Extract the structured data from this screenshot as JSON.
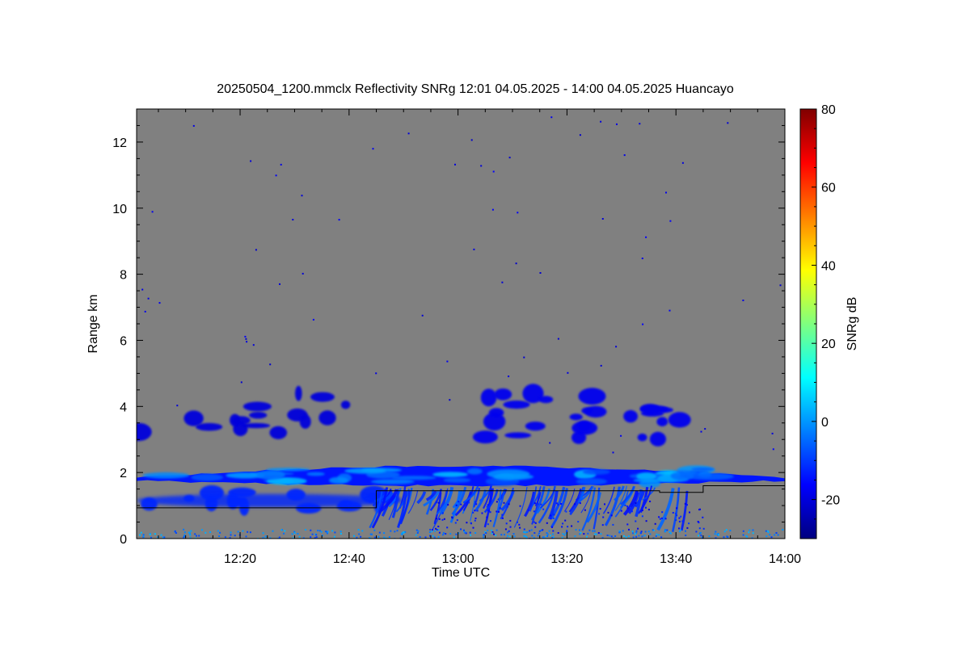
{
  "chart_data": {
    "type": "heatmap",
    "title": "20250504_1200.mmclx Reflectivity SNRg   12:01 04.05.2025 - 14:00 04.05.2025 Huancayo",
    "xlabel": "Time UTC",
    "ylabel": "Range km",
    "x_range": [
      "12:01",
      "14:00"
    ],
    "x_ticks": [
      {
        "value": "12:20",
        "label": "12:20"
      },
      {
        "value": "12:40",
        "label": "12:40"
      },
      {
        "value": "13:00",
        "label": "13:00"
      },
      {
        "value": "13:20",
        "label": "13:20"
      },
      {
        "value": "13:40",
        "label": "13:40"
      },
      {
        "value": "14:00",
        "label": "14:00"
      }
    ],
    "ylim": [
      0,
      13
    ],
    "y_ticks": [
      {
        "value": 0,
        "label": "0"
      },
      {
        "value": 2,
        "label": "2"
      },
      {
        "value": 4,
        "label": "4"
      },
      {
        "value": 6,
        "label": "6"
      },
      {
        "value": 8,
        "label": "8"
      },
      {
        "value": 10,
        "label": "10"
      },
      {
        "value": 12,
        "label": "12"
      }
    ],
    "colorbar": {
      "label": "SNRg dB",
      "range": [
        -30,
        80
      ],
      "ticks": [
        {
          "value": -20,
          "label": "-20"
        },
        {
          "value": 0,
          "label": "0"
        },
        {
          "value": 20,
          "label": "20"
        },
        {
          "value": 40,
          "label": "40"
        },
        {
          "value": 60,
          "label": "60"
        },
        {
          "value": 80,
          "label": "80"
        }
      ],
      "colormap": [
        "#00007f",
        "#0000ff",
        "#007fff",
        "#00ffff",
        "#7fff7f",
        "#ffff00",
        "#ff7f00",
        "#ff0000",
        "#7f0000"
      ]
    },
    "background_color": "#808080",
    "echo_layers": [
      {
        "name": "main-layer",
        "t_start": "12:01",
        "t_end": "14:00",
        "base_km": 1.6,
        "top_km": 2.2,
        "snr_db": -5
      },
      {
        "name": "mid-layer-left",
        "t_start": "12:01",
        "t_end": "12:50",
        "base_km": 0.9,
        "top_km": 1.4,
        "snr_db": -12
      },
      {
        "name": "fallstreaks",
        "t_start": "12:45",
        "t_end": "13:45",
        "base_km": 0.2,
        "top_km": 1.6,
        "snr_db": -15
      },
      {
        "name": "upper-cells",
        "t_start": "13:05",
        "t_end": "13:42",
        "base_km": 3.0,
        "top_km": 4.4,
        "snr_db": -18
      },
      {
        "name": "upper-patches-left",
        "t_start": "12:01",
        "t_end": "12:40",
        "base_km": 3.2,
        "top_km": 4.4,
        "snr_db": -20
      },
      {
        "name": "surface-clutter",
        "t_start": "12:01",
        "t_end": "14:00",
        "base_km": 0.0,
        "top_km": 0.3,
        "snr_db": -10
      }
    ],
    "cloud_base_line": [
      {
        "t": "12:01",
        "km": 0.93
      },
      {
        "t": "12:45",
        "km": 0.93
      },
      {
        "t": "12:45",
        "km": 1.45
      },
      {
        "t": "13:37",
        "km": 1.45
      },
      {
        "t": "13:37",
        "km": 1.4
      },
      {
        "t": "13:45",
        "km": 1.4
      },
      {
        "t": "13:45",
        "km": 1.6
      },
      {
        "t": "14:00",
        "km": 1.6
      }
    ]
  }
}
